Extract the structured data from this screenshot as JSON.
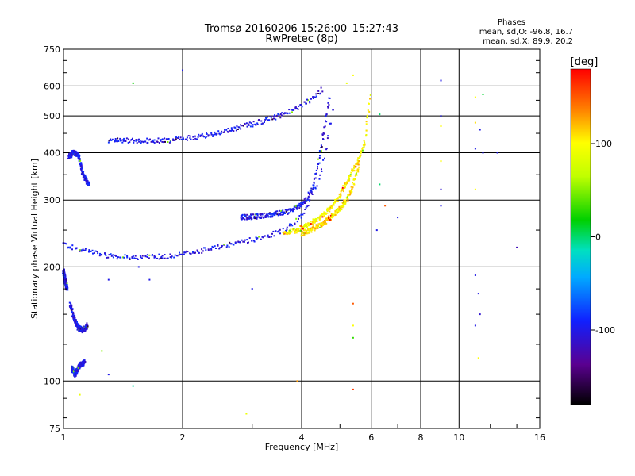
{
  "chart_data": {
    "type": "scatter",
    "title": "Tromsø 20160206 15:26:00–15:27:43",
    "subtitle": "RwPretec (8p)",
    "xlabel": "Frequency [MHz]",
    "ylabel": "Stationary phase Virtual Height [km]",
    "x_scale": "log",
    "y_scale": "log",
    "xlim": [
      1,
      16
    ],
    "ylim": [
      75,
      750
    ],
    "x_ticks": [
      1,
      2,
      4,
      6,
      8,
      10,
      16
    ],
    "y_ticks": [
      75,
      100,
      200,
      300,
      400,
      500,
      600,
      750
    ],
    "grid": true,
    "phase_info": {
      "heading": "Phases",
      "line_o": "mean, sd,O: -96.8, 16.7",
      "line_x": "mean, sd,X: 89.9, 20.2"
    },
    "colorbar": {
      "label": "[deg]",
      "range": [
        -180,
        180
      ],
      "ticks": [
        100,
        0,
        -100
      ]
    },
    "traces": [
      {
        "color_phase": -100,
        "points": [
          [
            1.0,
            230
          ],
          [
            1.05,
            225
          ],
          [
            1.1,
            222
          ],
          [
            1.2,
            218
          ],
          [
            1.3,
            214
          ],
          [
            1.45,
            212
          ],
          [
            1.6,
            212
          ],
          [
            1.8,
            213
          ],
          [
            2.0,
            216
          ],
          [
            2.3,
            222
          ],
          [
            2.6,
            228
          ],
          [
            3.0,
            236
          ],
          [
            3.3,
            242
          ],
          [
            3.6,
            250
          ],
          [
            3.85,
            262
          ],
          [
            4.05,
            278
          ],
          [
            4.2,
            298
          ],
          [
            4.35,
            325
          ],
          [
            4.5,
            360
          ],
          [
            4.6,
            400
          ],
          [
            4.7,
            450
          ],
          [
            4.8,
            520
          ]
        ]
      },
      {
        "color_phase": -100,
        "points": [
          [
            1.3,
            432
          ],
          [
            1.5,
            430
          ],
          [
            1.7,
            430
          ],
          [
            1.9,
            432
          ],
          [
            2.1,
            438
          ],
          [
            2.4,
            448
          ],
          [
            2.7,
            462
          ],
          [
            3.0,
            476
          ],
          [
            3.3,
            490
          ],
          [
            3.6,
            505
          ],
          [
            3.9,
            523
          ],
          [
            4.1,
            542
          ],
          [
            4.3,
            562
          ],
          [
            4.5,
            585
          ]
        ]
      },
      {
        "color_phase": -100,
        "points": [
          [
            1.03,
            390
          ],
          [
            1.06,
            400
          ],
          [
            1.09,
            395
          ],
          [
            1.12,
            350
          ],
          [
            1.16,
            330
          ]
        ]
      },
      {
        "color_phase": -100,
        "points": [
          [
            1.04,
            160
          ],
          [
            1.06,
            148
          ],
          [
            1.09,
            138
          ],
          [
            1.12,
            136
          ],
          [
            1.15,
            140
          ]
        ]
      },
      {
        "color_phase": -100,
        "points": [
          [
            1.05,
            108
          ],
          [
            1.07,
            104
          ],
          [
            1.1,
            110
          ],
          [
            1.13,
            112
          ]
        ]
      },
      {
        "color_phase": -100,
        "points": [
          [
            1.0,
            195
          ],
          [
            1.01,
            185
          ],
          [
            1.02,
            175
          ]
        ]
      },
      {
        "color_phase": -100,
        "points": [
          [
            2.8,
            270
          ],
          [
            3.1,
            272
          ],
          [
            3.4,
            275
          ],
          [
            3.7,
            280
          ],
          [
            3.95,
            290
          ],
          [
            4.15,
            305
          ],
          [
            4.3,
            330
          ],
          [
            4.4,
            370
          ],
          [
            4.5,
            420
          ],
          [
            4.6,
            480
          ],
          [
            4.7,
            560
          ]
        ]
      },
      {
        "color_phase": 100,
        "points": [
          [
            3.6,
            245
          ],
          [
            3.9,
            250
          ],
          [
            4.2,
            260
          ],
          [
            4.5,
            272
          ],
          [
            4.8,
            290
          ],
          [
            5.0,
            310
          ],
          [
            5.2,
            335
          ],
          [
            5.4,
            360
          ],
          [
            5.55,
            380
          ],
          [
            5.7,
            405
          ],
          [
            5.8,
            440
          ],
          [
            5.85,
            480
          ],
          [
            5.9,
            520
          ],
          [
            5.95,
            560
          ]
        ]
      },
      {
        "color_phase": 110,
        "points": [
          [
            4.0,
            245
          ],
          [
            4.4,
            255
          ],
          [
            4.7,
            268
          ],
          [
            5.0,
            285
          ],
          [
            5.2,
            300
          ],
          [
            5.35,
            320
          ],
          [
            5.5,
            350
          ],
          [
            5.6,
            375
          ]
        ]
      }
    ],
    "scatter_points": [
      {
        "x": 1.5,
        "y": 610,
        "phase": 20
      },
      {
        "x": 2.0,
        "y": 660,
        "phase": -100
      },
      {
        "x": 5.4,
        "y": 640,
        "phase": 100
      },
      {
        "x": 5.2,
        "y": 610,
        "phase": 90
      },
      {
        "x": 6.3,
        "y": 505,
        "phase": 0
      },
      {
        "x": 9.0,
        "y": 620,
        "phase": -100
      },
      {
        "x": 9.0,
        "y": 500,
        "phase": -100
      },
      {
        "x": 9.0,
        "y": 470,
        "phase": 100
      },
      {
        "x": 9.0,
        "y": 380,
        "phase": 100
      },
      {
        "x": 9.0,
        "y": 320,
        "phase": -110
      },
      {
        "x": 9.0,
        "y": 290,
        "phase": -100
      },
      {
        "x": 11.0,
        "y": 560,
        "phase": 100
      },
      {
        "x": 11.5,
        "y": 570,
        "phase": 10
      },
      {
        "x": 11.0,
        "y": 480,
        "phase": 110
      },
      {
        "x": 11.3,
        "y": 460,
        "phase": -100
      },
      {
        "x": 11.0,
        "y": 410,
        "phase": -100
      },
      {
        "x": 11.5,
        "y": 400,
        "phase": -100
      },
      {
        "x": 11.0,
        "y": 320,
        "phase": 100
      },
      {
        "x": 11.0,
        "y": 190,
        "phase": -100
      },
      {
        "x": 11.2,
        "y": 170,
        "phase": -100
      },
      {
        "x": 11.0,
        "y": 140,
        "phase": -100
      },
      {
        "x": 11.3,
        "y": 150,
        "phase": -110
      },
      {
        "x": 11.2,
        "y": 115,
        "phase": 100
      },
      {
        "x": 12.5,
        "y": 400,
        "phase": -100
      },
      {
        "x": 14.0,
        "y": 225,
        "phase": -120
      },
      {
        "x": 6.3,
        "y": 330,
        "phase": 0
      },
      {
        "x": 6.5,
        "y": 290,
        "phase": 150
      },
      {
        "x": 7.0,
        "y": 270,
        "phase": -100
      },
      {
        "x": 6.2,
        "y": 250,
        "phase": -100
      },
      {
        "x": 5.4,
        "y": 160,
        "phase": 150
      },
      {
        "x": 5.4,
        "y": 140,
        "phase": 100
      },
      {
        "x": 5.4,
        "y": 130,
        "phase": 30
      },
      {
        "x": 5.4,
        "y": 95,
        "phase": 160
      },
      {
        "x": 3.9,
        "y": 100,
        "phase": 130
      },
      {
        "x": 3.0,
        "y": 175,
        "phase": -100
      },
      {
        "x": 2.9,
        "y": 82,
        "phase": 90
      },
      {
        "x": 1.25,
        "y": 120,
        "phase": 50
      },
      {
        "x": 1.5,
        "y": 97,
        "phase": -10
      },
      {
        "x": 1.1,
        "y": 92,
        "phase": 90
      },
      {
        "x": 1.3,
        "y": 104,
        "phase": -100
      },
      {
        "x": 1.3,
        "y": 185,
        "phase": -100
      },
      {
        "x": 1.65,
        "y": 185,
        "phase": -100
      },
      {
        "x": 1.55,
        "y": 200,
        "phase": -100
      }
    ]
  }
}
